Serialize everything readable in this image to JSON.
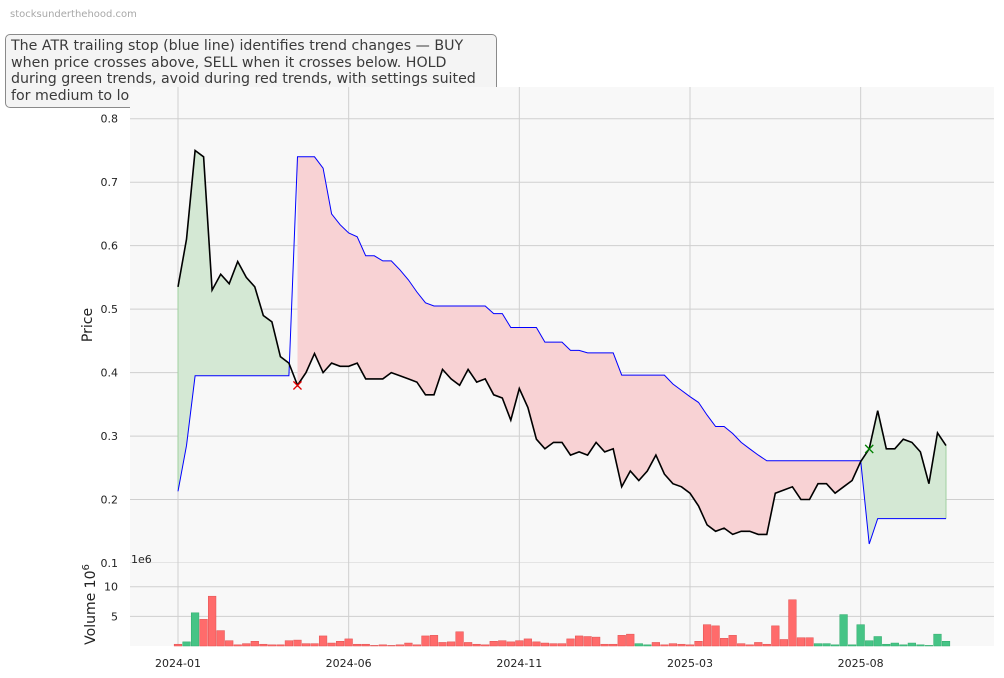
{
  "watermark": "stocksunderthehood.com",
  "note": "The ATR trailing stop (blue line) identifies trend changes — BUY when price crosses above, SELL when it crosses below. HOLD during green trends, avoid during red trends, with settings suited for medium to long-term investors.",
  "colors": {
    "price": "#000000",
    "stop": "#0000ff",
    "bull_fill": "#d4e8d4",
    "bear_fill": "#f8d2d4",
    "vol_up": "#46c486",
    "vol_down": "#ff6b6b",
    "sell_marker": "#e00000",
    "buy_marker": "#008000",
    "panel_bg": "#f8f8f8",
    "grid": "#cfcfcf"
  },
  "chart_data": [
    {
      "type": "line",
      "ylabel": "Price",
      "ylim": [
        0.1,
        0.85
      ],
      "yticks": [
        "0.1",
        "0.2",
        "0.3",
        "0.4",
        "0.5",
        "0.6",
        "0.7",
        "0.8"
      ],
      "xticks": [
        "2024-01",
        "2024-06",
        "2024-11",
        "2025-03",
        "2025-08"
      ],
      "grid": true,
      "series": [
        {
          "key": "price",
          "values": [
            0.535,
            0.61,
            0.75,
            0.74,
            0.53,
            0.555,
            0.54,
            0.575,
            0.55,
            0.535,
            0.49,
            0.48,
            0.425,
            0.415,
            0.38,
            0.4,
            0.43,
            0.4,
            0.415,
            0.41,
            0.41,
            0.415,
            0.39,
            0.39,
            0.39,
            0.4,
            0.395,
            0.39,
            0.385,
            0.365,
            0.365,
            0.405,
            0.39,
            0.38,
            0.405,
            0.385,
            0.39,
            0.365,
            0.36,
            0.325,
            0.375,
            0.345,
            0.295,
            0.28,
            0.29,
            0.29,
            0.27,
            0.275,
            0.27,
            0.29,
            0.275,
            0.28,
            0.22,
            0.245,
            0.23,
            0.245,
            0.27,
            0.24,
            0.225,
            0.22,
            0.21,
            0.19,
            0.16,
            0.15,
            0.155,
            0.145,
            0.15,
            0.15,
            0.145,
            0.145,
            0.21,
            0.215,
            0.22,
            0.2,
            0.2,
            0.225,
            0.225,
            0.21,
            0.22,
            0.23,
            0.26,
            0.28,
            0.34,
            0.28,
            0.28,
            0.295,
            0.29,
            0.275,
            0.225,
            0.305,
            0.285
          ]
        },
        {
          "key": "stop",
          "values": [
            0.213,
            0.285,
            0.395,
            0.395,
            0.395,
            0.395,
            0.395,
            0.395,
            0.395,
            0.395,
            0.395,
            0.395,
            0.395,
            0.395,
            0.74,
            0.74,
            0.74,
            0.722,
            0.65,
            0.633,
            0.62,
            0.614,
            0.584,
            0.584,
            0.576,
            0.576,
            0.562,
            0.546,
            0.527,
            0.51,
            0.505,
            0.505,
            0.505,
            0.505,
            0.505,
            0.505,
            0.505,
            0.493,
            0.493,
            0.471,
            0.471,
            0.471,
            0.471,
            0.448,
            0.448,
            0.448,
            0.435,
            0.435,
            0.431,
            0.431,
            0.431,
            0.431,
            0.396,
            0.396,
            0.396,
            0.396,
            0.396,
            0.396,
            0.382,
            0.372,
            0.362,
            0.353,
            0.333,
            0.315,
            0.315,
            0.304,
            0.29,
            0.28,
            0.27,
            0.261,
            0.261,
            0.261,
            0.261,
            0.261,
            0.261,
            0.261,
            0.261,
            0.261,
            0.261,
            0.261,
            0.261,
            0.13,
            0.17,
            0.17,
            0.17,
            0.17,
            0.17,
            0.17,
            0.17,
            0.17,
            0.17
          ]
        }
      ],
      "markers": [
        {
          "type": "sell",
          "symbol": "×",
          "index": 14,
          "value": 0.38
        },
        {
          "type": "buy",
          "symbol": "×",
          "index": 81,
          "value": 0.28
        }
      ],
      "trend_switch": {
        "bear_start": 14,
        "bull_start": 80
      }
    },
    {
      "type": "bar",
      "ylabel": "Volume",
      "ylabel_exponent": "6",
      "offset_text": "1e6",
      "ylim": [
        0,
        14
      ],
      "yticks": [
        "5",
        "10"
      ],
      "values": [
        0.3,
        0.7,
        5.6,
        4.5,
        8.4,
        2.6,
        0.9,
        0.2,
        0.4,
        0.8,
        0.3,
        0.2,
        0.2,
        0.9,
        1.0,
        0.4,
        0.4,
        1.7,
        0.5,
        0.8,
        1.2,
        0.3,
        0.3,
        0.1,
        0.2,
        0.1,
        0.2,
        0.5,
        0.2,
        1.7,
        1.8,
        0.6,
        0.7,
        2.4,
        0.6,
        0.3,
        0.2,
        0.8,
        0.9,
        0.7,
        0.9,
        1.2,
        0.7,
        0.5,
        0.4,
        0.4,
        1.2,
        1.7,
        1.6,
        1.5,
        0.3,
        0.3,
        1.8,
        2.0,
        0.4,
        0.2,
        0.6,
        0.2,
        0.4,
        0.3,
        0.2,
        0.8,
        3.6,
        3.4,
        1.3,
        1.8,
        0.4,
        0.2,
        0.6,
        0.3,
        3.4,
        1.1,
        7.8,
        1.4,
        1.4,
        0.4,
        0.4,
        0.2,
        5.3,
        0.2,
        3.6,
        0.9,
        1.6,
        0.3,
        0.5,
        0.2,
        0.5,
        0.2,
        0.1,
        2.0,
        0.8
      ],
      "directions": "duuddddddddddddddddddddddddddddddddddddddddddddddddddduuddddddddddddddddddduuuuuuuuuuuuuuuu"
    }
  ]
}
